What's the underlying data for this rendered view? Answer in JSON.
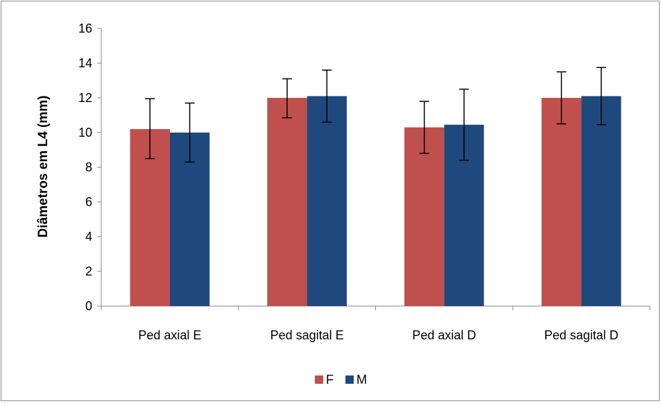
{
  "chart_data": {
    "type": "bar",
    "title": "",
    "xlabel": "",
    "ylabel": "Diâmetros em L4 (mm)",
    "ylim": [
      0,
      16
    ],
    "yticks": [
      0,
      2,
      4,
      6,
      8,
      10,
      12,
      14,
      16
    ],
    "grid": false,
    "legend_position": "bottom",
    "error_bars": true,
    "categories": [
      "Ped axial E",
      "Ped sagital E",
      "Ped axial D",
      "Ped sagital D"
    ],
    "series": [
      {
        "name": "F",
        "color": "#C0504D",
        "values": [
          10.2,
          12.0,
          10.3,
          12.0
        ],
        "error_low": [
          8.5,
          10.85,
          8.8,
          10.5
        ],
        "error_high": [
          11.95,
          13.1,
          11.8,
          13.5
        ]
      },
      {
        "name": "M",
        "color": "#1F497D",
        "values": [
          10.0,
          12.1,
          10.45,
          12.1
        ],
        "error_low": [
          8.3,
          10.6,
          8.4,
          10.45
        ],
        "error_high": [
          11.7,
          13.6,
          12.5,
          13.75
        ]
      }
    ]
  }
}
